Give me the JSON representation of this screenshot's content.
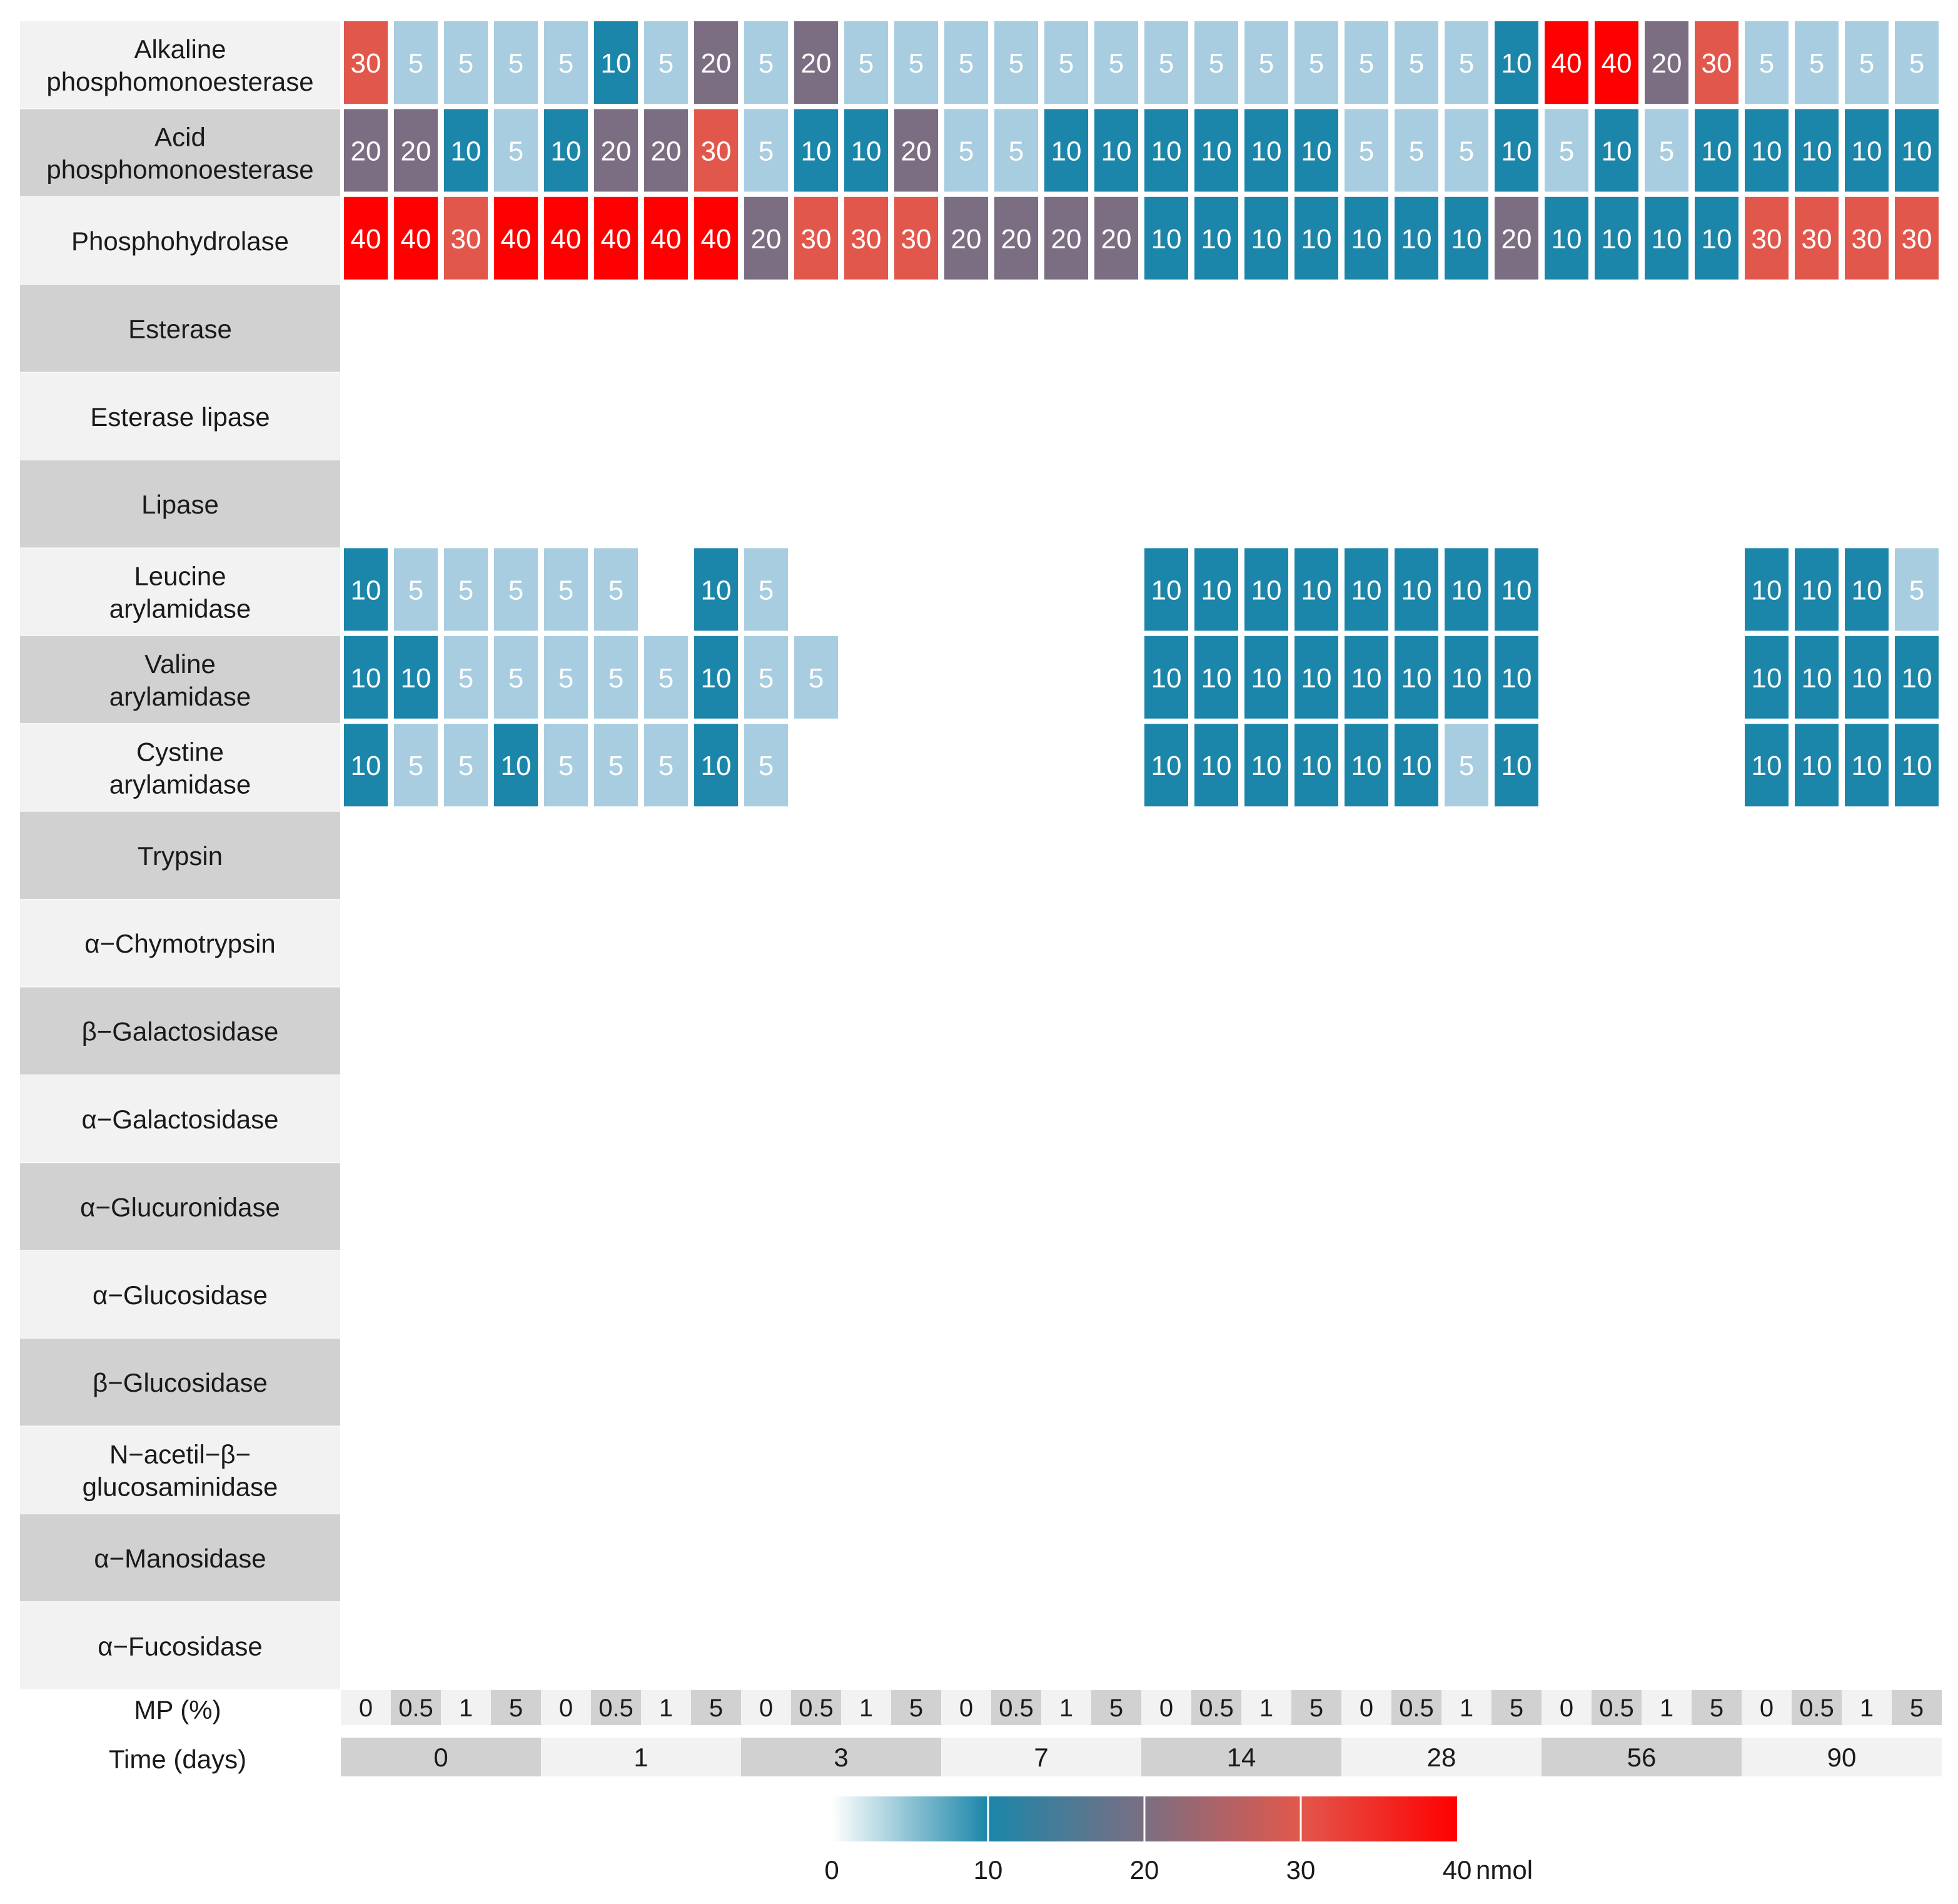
{
  "chart_data": {
    "type": "heatmap",
    "title": "",
    "rows": [
      "Alkaline phosphomonoesterase",
      "Acid phosphomonoesterase",
      "Phosphohydrolase",
      "Esterase",
      "Esterase lipase",
      "Lipase",
      "Leucine arylamidase",
      "Valine arylamidase",
      "Cystine arylamidase",
      "Trypsin",
      "α−Chymotrypsin",
      "β−Galactosidase",
      "α−Galactosidase",
      "α−Glucuronidase",
      "α−Glucosidase",
      "β−Glucosidase",
      "N−acetil−β−glucosaminidase",
      "α−Manosidase",
      "α−Fucosidase"
    ],
    "row_label_lines": [
      [
        "Alkaline",
        "phosphomonoesterase"
      ],
      [
        "Acid",
        "phosphomonoesterase"
      ],
      [
        "Phosphohydrolase"
      ],
      [
        "Esterase"
      ],
      [
        "Esterase lipase"
      ],
      [
        "Lipase"
      ],
      [
        "Leucine",
        "arylamidase"
      ],
      [
        "Valine",
        "arylamidase"
      ],
      [
        "Cystine",
        "arylamidase"
      ],
      [
        "Trypsin"
      ],
      [
        "α−Chymotrypsin"
      ],
      [
        "β−Galactosidase"
      ],
      [
        "α−Galactosidase"
      ],
      [
        "α−Glucuronidase"
      ],
      [
        "α−Glucosidase"
      ],
      [
        "β−Glucosidase"
      ],
      [
        "N−acetil−β−",
        "glucosaminidase"
      ],
      [
        "α−Manosidase"
      ],
      [
        "α−Fucosidase"
      ]
    ],
    "x_axis_label_mp": "MP (%)",
    "x_axis_label_time": "Time (days)",
    "mp_levels": [
      "0",
      "0.5",
      "1",
      "5"
    ],
    "time_levels": [
      "0",
      "1",
      "3",
      "7",
      "14",
      "28",
      "56",
      "90"
    ],
    "values": [
      [
        30,
        5,
        5,
        5,
        5,
        10,
        5,
        20,
        5,
        20,
        5,
        5,
        5,
        5,
        5,
        5,
        5,
        5,
        5,
        5,
        5,
        5,
        5,
        10,
        40,
        40,
        20,
        30,
        5,
        5,
        5,
        5
      ],
      [
        20,
        20,
        10,
        5,
        10,
        20,
        20,
        30,
        5,
        10,
        10,
        20,
        5,
        5,
        10,
        10,
        10,
        10,
        10,
        10,
        5,
        5,
        5,
        10,
        5,
        10,
        5,
        10,
        10,
        10,
        10,
        10
      ],
      [
        40,
        40,
        30,
        40,
        40,
        40,
        40,
        40,
        20,
        30,
        30,
        30,
        20,
        20,
        20,
        20,
        10,
        10,
        10,
        10,
        10,
        10,
        10,
        20,
        10,
        10,
        10,
        10,
        30,
        30,
        30,
        30
      ],
      [
        null,
        null,
        null,
        null,
        null,
        null,
        null,
        null,
        null,
        null,
        null,
        null,
        null,
        null,
        null,
        null,
        null,
        null,
        null,
        null,
        null,
        null,
        null,
        null,
        null,
        null,
        null,
        null,
        null,
        null,
        null,
        null
      ],
      [
        null,
        null,
        null,
        null,
        null,
        null,
        null,
        null,
        null,
        null,
        null,
        null,
        null,
        null,
        null,
        null,
        null,
        null,
        null,
        null,
        null,
        null,
        null,
        null,
        null,
        null,
        null,
        null,
        null,
        null,
        null,
        null
      ],
      [
        null,
        null,
        null,
        null,
        null,
        null,
        null,
        null,
        null,
        null,
        null,
        null,
        null,
        null,
        null,
        null,
        null,
        null,
        null,
        null,
        null,
        null,
        null,
        null,
        null,
        null,
        null,
        null,
        null,
        null,
        null,
        null
      ],
      [
        10,
        5,
        5,
        5,
        5,
        5,
        null,
        10,
        5,
        null,
        null,
        null,
        null,
        null,
        null,
        null,
        10,
        10,
        10,
        10,
        10,
        10,
        10,
        10,
        null,
        null,
        null,
        null,
        10,
        10,
        10,
        5
      ],
      [
        10,
        10,
        5,
        5,
        5,
        5,
        5,
        10,
        5,
        5,
        null,
        null,
        null,
        null,
        null,
        null,
        10,
        10,
        10,
        10,
        10,
        10,
        10,
        10,
        null,
        null,
        null,
        null,
        10,
        10,
        10,
        10
      ],
      [
        10,
        5,
        5,
        10,
        5,
        5,
        5,
        10,
        5,
        null,
        null,
        null,
        null,
        null,
        null,
        null,
        10,
        10,
        10,
        10,
        10,
        10,
        5,
        10,
        null,
        null,
        null,
        null,
        10,
        10,
        10,
        10
      ],
      [
        null,
        null,
        null,
        null,
        null,
        null,
        null,
        null,
        null,
        null,
        null,
        null,
        null,
        null,
        null,
        null,
        null,
        null,
        null,
        null,
        null,
        null,
        null,
        null,
        null,
        null,
        null,
        null,
        null,
        null,
        null,
        null
      ],
      [
        null,
        null,
        null,
        null,
        null,
        null,
        null,
        null,
        null,
        null,
        null,
        null,
        null,
        null,
        null,
        null,
        null,
        null,
        null,
        null,
        null,
        null,
        null,
        null,
        null,
        null,
        null,
        null,
        null,
        null,
        null,
        null
      ],
      [
        null,
        null,
        null,
        null,
        null,
        null,
        null,
        null,
        null,
        null,
        null,
        null,
        null,
        null,
        null,
        null,
        null,
        null,
        null,
        null,
        null,
        null,
        null,
        null,
        null,
        null,
        null,
        null,
        null,
        null,
        null,
        null
      ],
      [
        null,
        null,
        null,
        null,
        null,
        null,
        null,
        null,
        null,
        null,
        null,
        null,
        null,
        null,
        null,
        null,
        null,
        null,
        null,
        null,
        null,
        null,
        null,
        null,
        null,
        null,
        null,
        null,
        null,
        null,
        null,
        null
      ],
      [
        null,
        null,
        null,
        null,
        null,
        null,
        null,
        null,
        null,
        null,
        null,
        null,
        null,
        null,
        null,
        null,
        null,
        null,
        null,
        null,
        null,
        null,
        null,
        null,
        null,
        null,
        null,
        null,
        null,
        null,
        null,
        null
      ],
      [
        null,
        null,
        null,
        null,
        null,
        null,
        null,
        null,
        null,
        null,
        null,
        null,
        null,
        null,
        null,
        null,
        null,
        null,
        null,
        null,
        null,
        null,
        null,
        null,
        null,
        null,
        null,
        null,
        null,
        null,
        null,
        null
      ],
      [
        null,
        null,
        null,
        null,
        null,
        null,
        null,
        null,
        null,
        null,
        null,
        null,
        null,
        null,
        null,
        null,
        null,
        null,
        null,
        null,
        null,
        null,
        null,
        null,
        null,
        null,
        null,
        null,
        null,
        null,
        null,
        null
      ],
      [
        null,
        null,
        null,
        null,
        null,
        null,
        null,
        null,
        null,
        null,
        null,
        null,
        null,
        null,
        null,
        null,
        null,
        null,
        null,
        null,
        null,
        null,
        null,
        null,
        null,
        null,
        null,
        null,
        null,
        null,
        null,
        null
      ],
      [
        null,
        null,
        null,
        null,
        null,
        null,
        null,
        null,
        null,
        null,
        null,
        null,
        null,
        null,
        null,
        null,
        null,
        null,
        null,
        null,
        null,
        null,
        null,
        null,
        null,
        null,
        null,
        null,
        null,
        null,
        null,
        null
      ],
      [
        null,
        null,
        null,
        null,
        null,
        null,
        null,
        null,
        null,
        null,
        null,
        null,
        null,
        null,
        null,
        null,
        null,
        null,
        null,
        null,
        null,
        null,
        null,
        null,
        null,
        null,
        null,
        null,
        null,
        null,
        null,
        null
      ]
    ],
    "color_scale": {
      "stops": [
        {
          "value": 0,
          "color": "#ffffff"
        },
        {
          "value": 5,
          "color": "#a8cde0"
        },
        {
          "value": 10,
          "color": "#1b86a9"
        },
        {
          "value": 20,
          "color": "#7b6e82"
        },
        {
          "value": 30,
          "color": "#e2574c"
        },
        {
          "value": 40,
          "color": "#ff0000"
        }
      ]
    },
    "legend": {
      "ticks": [
        "0",
        "10",
        "20",
        "30",
        "40"
      ],
      "unit": "nmol",
      "placement": "bottom"
    },
    "colors": {
      "label_band_light": "#f2f2f2",
      "label_band_dark": "#d1d1d1"
    }
  }
}
